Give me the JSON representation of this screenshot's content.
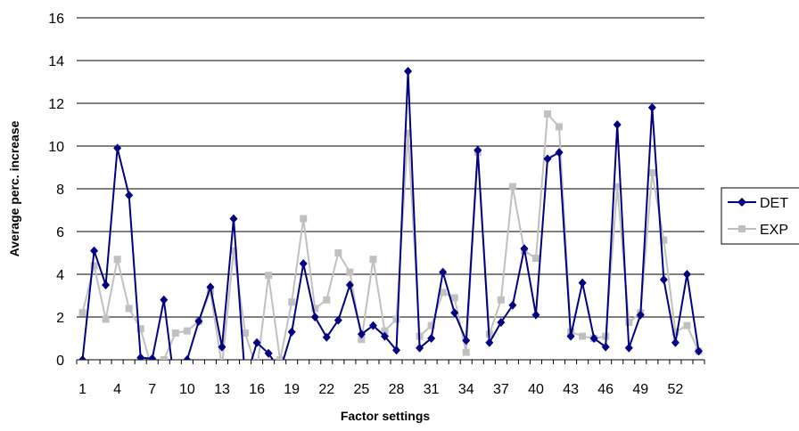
{
  "chart_data": {
    "type": "line",
    "xlabel": "Factor settings",
    "ylabel": "Average perc. increase",
    "ylim": [
      0,
      16
    ],
    "yticks": [
      "0",
      "2",
      "4",
      "6",
      "8",
      "10",
      "12",
      "14",
      "16"
    ],
    "x": [
      1,
      2,
      3,
      4,
      5,
      6,
      7,
      8,
      9,
      10,
      11,
      12,
      13,
      14,
      15,
      16,
      17,
      18,
      19,
      20,
      21,
      22,
      23,
      24,
      25,
      26,
      27,
      28,
      29,
      30,
      31,
      32,
      33,
      34,
      35,
      36,
      37,
      38,
      39,
      40,
      41,
      42,
      43,
      44,
      45,
      46,
      47,
      48,
      49,
      50,
      51,
      52,
      53,
      54
    ],
    "xtick_labels": [
      "1",
      "4",
      "7",
      "10",
      "13",
      "16",
      "19",
      "22",
      "25",
      "28",
      "31",
      "34",
      "37",
      "40",
      "43",
      "46",
      "49",
      "52"
    ],
    "grid": "horizontal",
    "legend_position": "right",
    "series": [
      {
        "name": "DET",
        "color": "#000080",
        "marker": "diamond",
        "values": [
          0,
          5.1,
          3.5,
          9.9,
          7.7,
          0.1,
          0.05,
          2.8,
          -1.5,
          0.0,
          1.8,
          3.4,
          0.6,
          6.6,
          -1.0,
          0.8,
          0.3,
          -0.5,
          1.3,
          4.5,
          2.0,
          1.05,
          1.85,
          3.5,
          1.2,
          1.6,
          1.1,
          0.45,
          13.5,
          0.55,
          1.0,
          4.1,
          2.2,
          0.9,
          9.8,
          0.8,
          1.75,
          2.55,
          5.2,
          2.1,
          9.4,
          9.7,
          1.1,
          3.6,
          1.0,
          0.6,
          11.0,
          0.55,
          2.1,
          11.8,
          3.75,
          0.8,
          4.0,
          0.4
        ]
      },
      {
        "name": "EXP",
        "color": "#c0c0c0",
        "marker": "square",
        "values": [
          2.2,
          4.4,
          1.9,
          4.7,
          2.4,
          1.45,
          -0.5,
          0.0,
          1.25,
          1.35,
          1.8,
          3.2,
          -0.3,
          5.1,
          1.25,
          -0.5,
          3.95,
          0.0,
          2.7,
          6.6,
          2.4,
          2.8,
          5.0,
          4.1,
          0.95,
          4.7,
          1.35,
          1.9,
          10.6,
          1.1,
          1.6,
          3.15,
          2.9,
          0.35,
          9.7,
          1.2,
          2.8,
          8.1,
          5.1,
          4.75,
          11.5,
          10.9,
          1.3,
          1.1,
          1.0,
          1.1,
          8.1,
          1.75,
          2.2,
          8.75,
          5.6,
          1.3,
          1.6,
          0.4
        ]
      }
    ]
  }
}
